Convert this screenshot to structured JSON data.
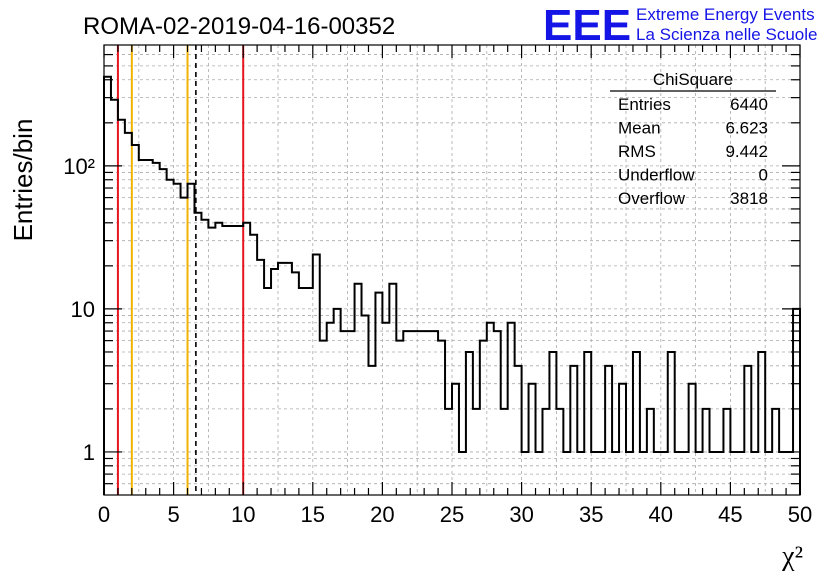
{
  "header": {
    "run_title": "ROMA-02-2019-04-16-00352",
    "logo_text": "EEE",
    "logo_line1": "Extreme Energy Events",
    "logo_line2": "La Scienza nelle Scuole"
  },
  "stats": {
    "title": "ChiSquare",
    "rows": [
      {
        "label": "Entries",
        "value": "6440"
      },
      {
        "label": "Mean",
        "value": "6.623"
      },
      {
        "label": "RMS",
        "value": "9.442"
      },
      {
        "label": "Underflow",
        "value": "0"
      },
      {
        "label": "Overflow",
        "value": "3818"
      }
    ]
  },
  "colors": {
    "histogram": "#000000",
    "red_line": "#e8141e",
    "orange_line": "#f0b400",
    "dashed_line": "#000000",
    "grid": "#aaaaaa"
  },
  "chart_data": {
    "type": "histogram",
    "title": "ROMA-02-2019-04-16-00352",
    "xlabel": "χ²",
    "ylabel": "Entries/bin",
    "xlim": [
      0,
      50
    ],
    "ylim": [
      0.5,
      700
    ],
    "yscale": "log",
    "grid": true,
    "bin_width": 0.5,
    "x_ticks": [
      0,
      5,
      10,
      15,
      20,
      25,
      30,
      35,
      40,
      45,
      50
    ],
    "x_tick_labels": [
      "0",
      "5",
      "10",
      "15",
      "20",
      "25",
      "30",
      "35",
      "40",
      "45",
      "50"
    ],
    "y_ticks": [
      1,
      10,
      100
    ],
    "y_tick_labels": [
      "1",
      "10",
      "10²"
    ],
    "counts": [
      420,
      290,
      210,
      170,
      140,
      110,
      110,
      105,
      95,
      80,
      75,
      60,
      75,
      47,
      42,
      37,
      40,
      38,
      38,
      38,
      40,
      33,
      22,
      14,
      19,
      21,
      21,
      18,
      14,
      14,
      24,
      6,
      8,
      10,
      7,
      7,
      15,
      9,
      4,
      13,
      8,
      15,
      6,
      7,
      7,
      7,
      7,
      7,
      6,
      2,
      3,
      1,
      5,
      2,
      6,
      8,
      7,
      2,
      8,
      4,
      1,
      3,
      1,
      2,
      5,
      2,
      1,
      4,
      1,
      5,
      1,
      1,
      4,
      1,
      3,
      1,
      5,
      1,
      2,
      1,
      1,
      5,
      1,
      1,
      3,
      1,
      2,
      1,
      1,
      2,
      1,
      1,
      4,
      1,
      5,
      1,
      2,
      1,
      1,
      10
    ],
    "vertical_lines": [
      {
        "x": 1,
        "color": "red_line",
        "style": "solid"
      },
      {
        "x": 2,
        "color": "orange_line",
        "style": "solid"
      },
      {
        "x": 6,
        "color": "orange_line",
        "style": "solid"
      },
      {
        "x": 6.6,
        "color": "dashed_line",
        "style": "dashed"
      },
      {
        "x": 10,
        "color": "red_line",
        "style": "solid"
      }
    ]
  }
}
